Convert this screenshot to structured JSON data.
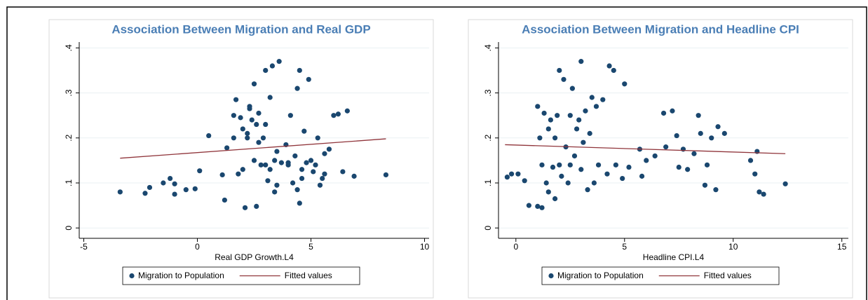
{
  "chart_data": [
    {
      "type": "scatter",
      "title": "Association Between Migration and Real GDP",
      "x_label": "Real GDP Growth.L4",
      "xlim": [
        -5.2,
        10.2
      ],
      "xticks": [
        -5,
        0,
        5,
        10
      ],
      "ylim": [
        -0.023,
        0.413
      ],
      "yticks": [
        0,
        {
          "value": 0.1,
          "label": ".1"
        },
        {
          "value": 0.2,
          "label": ".2"
        },
        {
          "value": 0.3,
          "label": ".3"
        },
        {
          "value": 0.4,
          "label": ".4"
        }
      ],
      "grid": true,
      "series": [
        {
          "name": "Migration to Population",
          "type": "scatter",
          "color": "#1a476f",
          "x": [
            -3.4,
            -2.3,
            -2.1,
            -1.5,
            -1.2,
            -1,
            -1,
            -0.5,
            -0.1,
            0.1,
            0.5,
            1.1,
            1.2,
            1.3,
            1.6,
            1.6,
            1.7,
            1.8,
            2,
            2,
            2.1,
            2.2,
            2.3,
            2.3,
            2.4,
            2.5,
            2.5,
            2.6,
            2.6,
            2.7,
            2.7,
            2.8,
            2.9,
            3,
            3,
            3.1,
            3.2,
            3.2,
            3.3,
            3.4,
            3.5,
            3.5,
            3.6,
            3.7,
            3.9,
            4,
            4.1,
            4.2,
            4.3,
            4.4,
            4.4,
            4.5,
            4.5,
            4.6,
            4.7,
            4.8,
            4.9,
            5,
            5.1,
            5.3,
            5.4,
            5.5,
            5.6,
            5.8,
            6,
            6.2,
            6.4,
            6.6,
            6.9,
            8.3,
            3,
            3.4,
            4,
            2.2,
            1.9,
            5.6,
            5.2,
            4.6
          ],
          "values": [
            0.08,
            0.077,
            0.09,
            0.1,
            0.11,
            0.098,
            0.075,
            0.085,
            0.087,
            0.127,
            0.205,
            0.118,
            0.062,
            0.178,
            0.25,
            0.2,
            0.285,
            0.12,
            0.13,
            0.22,
            0.045,
            0.21,
            0.265,
            0.27,
            0.24,
            0.15,
            0.32,
            0.23,
            0.048,
            0.19,
            0.255,
            0.14,
            0.2,
            0.35,
            0.23,
            0.105,
            0.29,
            0.13,
            0.36,
            0.08,
            0.17,
            0.095,
            0.37,
            0.145,
            0.185,
            0.14,
            0.25,
            0.1,
            0.16,
            0.31,
            0.085,
            0.35,
            0.055,
            0.13,
            0.215,
            0.145,
            0.33,
            0.15,
            0.125,
            0.2,
            0.095,
            0.11,
            0.165,
            0.175,
            0.25,
            0.253,
            0.125,
            0.26,
            0.115,
            0.118,
            0.14,
            0.15,
            0.145,
            0.2,
            0.245,
            0.12,
            0.14,
            0.11
          ]
        },
        {
          "name": "Fitted values",
          "type": "line",
          "color": "#90353b",
          "x": [
            -3.4,
            8.3
          ],
          "values": [
            0.155,
            0.198
          ]
        }
      ]
    },
    {
      "type": "scatter",
      "title": "Association Between Migration and Headline CPI",
      "x_label": "Headline CPI.L4",
      "xlim": [
        -0.8,
        15.3
      ],
      "xticks": [
        0,
        5,
        10,
        15
      ],
      "ylim": [
        -0.023,
        0.413
      ],
      "yticks": [
        0,
        {
          "value": 0.1,
          "label": ".1"
        },
        {
          "value": 0.2,
          "label": ".2"
        },
        {
          "value": 0.3,
          "label": ".3"
        },
        {
          "value": 0.4,
          "label": ".4"
        }
      ],
      "grid": true,
      "series": [
        {
          "name": "Migration to Population",
          "type": "scatter",
          "color": "#1a476f",
          "x": [
            -0.4,
            -0.2,
            0.1,
            0.4,
            0.6,
            1,
            1,
            1.2,
            1.2,
            1.3,
            1.4,
            1.5,
            1.5,
            1.6,
            1.7,
            1.8,
            1.8,
            1.9,
            2,
            2.1,
            2.2,
            2.3,
            2.4,
            2.5,
            2.6,
            2.7,
            2.8,
            2.9,
            3,
            3,
            3.1,
            3.2,
            3.3,
            3.4,
            3.5,
            3.6,
            3.7,
            3.8,
            4,
            4.2,
            4.3,
            4.5,
            4.6,
            4.9,
            5,
            5.2,
            5.7,
            5.8,
            6,
            6.4,
            6.8,
            6.9,
            7.2,
            7.4,
            7.5,
            7.7,
            7.9,
            8.2,
            8.4,
            8.5,
            8.7,
            8.8,
            9,
            9.2,
            9.3,
            9.6,
            10.8,
            11,
            11.1,
            11.2,
            11.4,
            12.4,
            2,
            1.1,
            2.5
          ],
          "values": [
            0.113,
            0.12,
            0.12,
            0.105,
            0.05,
            0.048,
            0.27,
            0.045,
            0.14,
            0.255,
            0.1,
            0.08,
            0.22,
            0.24,
            0.135,
            0.2,
            0.065,
            0.25,
            0.35,
            0.115,
            0.33,
            0.18,
            0.1,
            0.14,
            0.31,
            0.16,
            0.22,
            0.24,
            0.37,
            0.13,
            0.19,
            0.26,
            0.085,
            0.21,
            0.29,
            0.1,
            0.27,
            0.14,
            0.285,
            0.12,
            0.36,
            0.35,
            0.14,
            0.11,
            0.32,
            0.135,
            0.175,
            0.115,
            0.15,
            0.16,
            0.255,
            0.18,
            0.26,
            0.205,
            0.135,
            0.175,
            0.13,
            0.165,
            0.25,
            0.21,
            0.095,
            0.14,
            0.2,
            0.085,
            0.225,
            0.21,
            0.15,
            0.12,
            0.17,
            0.08,
            0.075,
            0.098,
            0.14,
            0.2,
            0.25
          ]
        },
        {
          "name": "Fitted values",
          "type": "line",
          "color": "#90353b",
          "x": [
            -0.5,
            12.4
          ],
          "values": [
            0.185,
            0.165
          ]
        }
      ]
    }
  ]
}
